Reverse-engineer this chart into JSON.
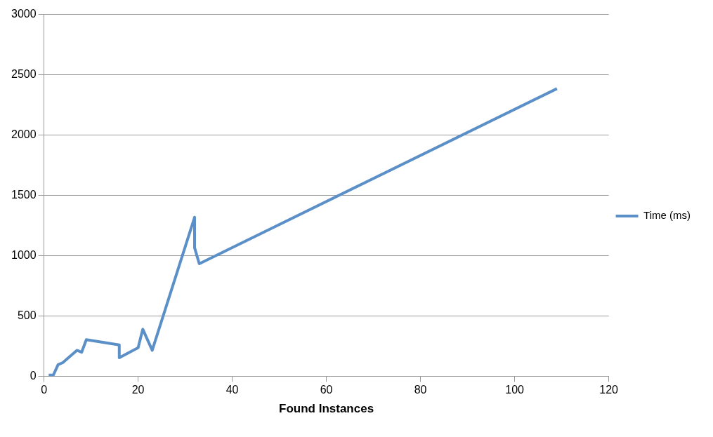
{
  "chart_data": {
    "type": "line",
    "xlabel": "Found Instances",
    "x": [
      1,
      2,
      3,
      4,
      7,
      8,
      9,
      16,
      16,
      20,
      21,
      23,
      32,
      32,
      33,
      109
    ],
    "series": [
      {
        "name": "Time (ms)",
        "color": "#5b8fc8",
        "values": [
          10,
          10,
          96,
          113,
          215,
          199,
          303,
          260,
          154,
          236,
          390,
          215,
          1318,
          1066,
          933,
          2385
        ]
      }
    ],
    "xlim": [
      0,
      120
    ],
    "xticks": [
      0,
      20,
      40,
      60,
      80,
      100,
      120
    ],
    "ylim": [
      0,
      3000
    ],
    "yticks": [
      0,
      500,
      1000,
      1500,
      2000,
      2500,
      3000
    ],
    "grid": "y",
    "legend": "right",
    "marker": "none",
    "line_style": "solid"
  }
}
